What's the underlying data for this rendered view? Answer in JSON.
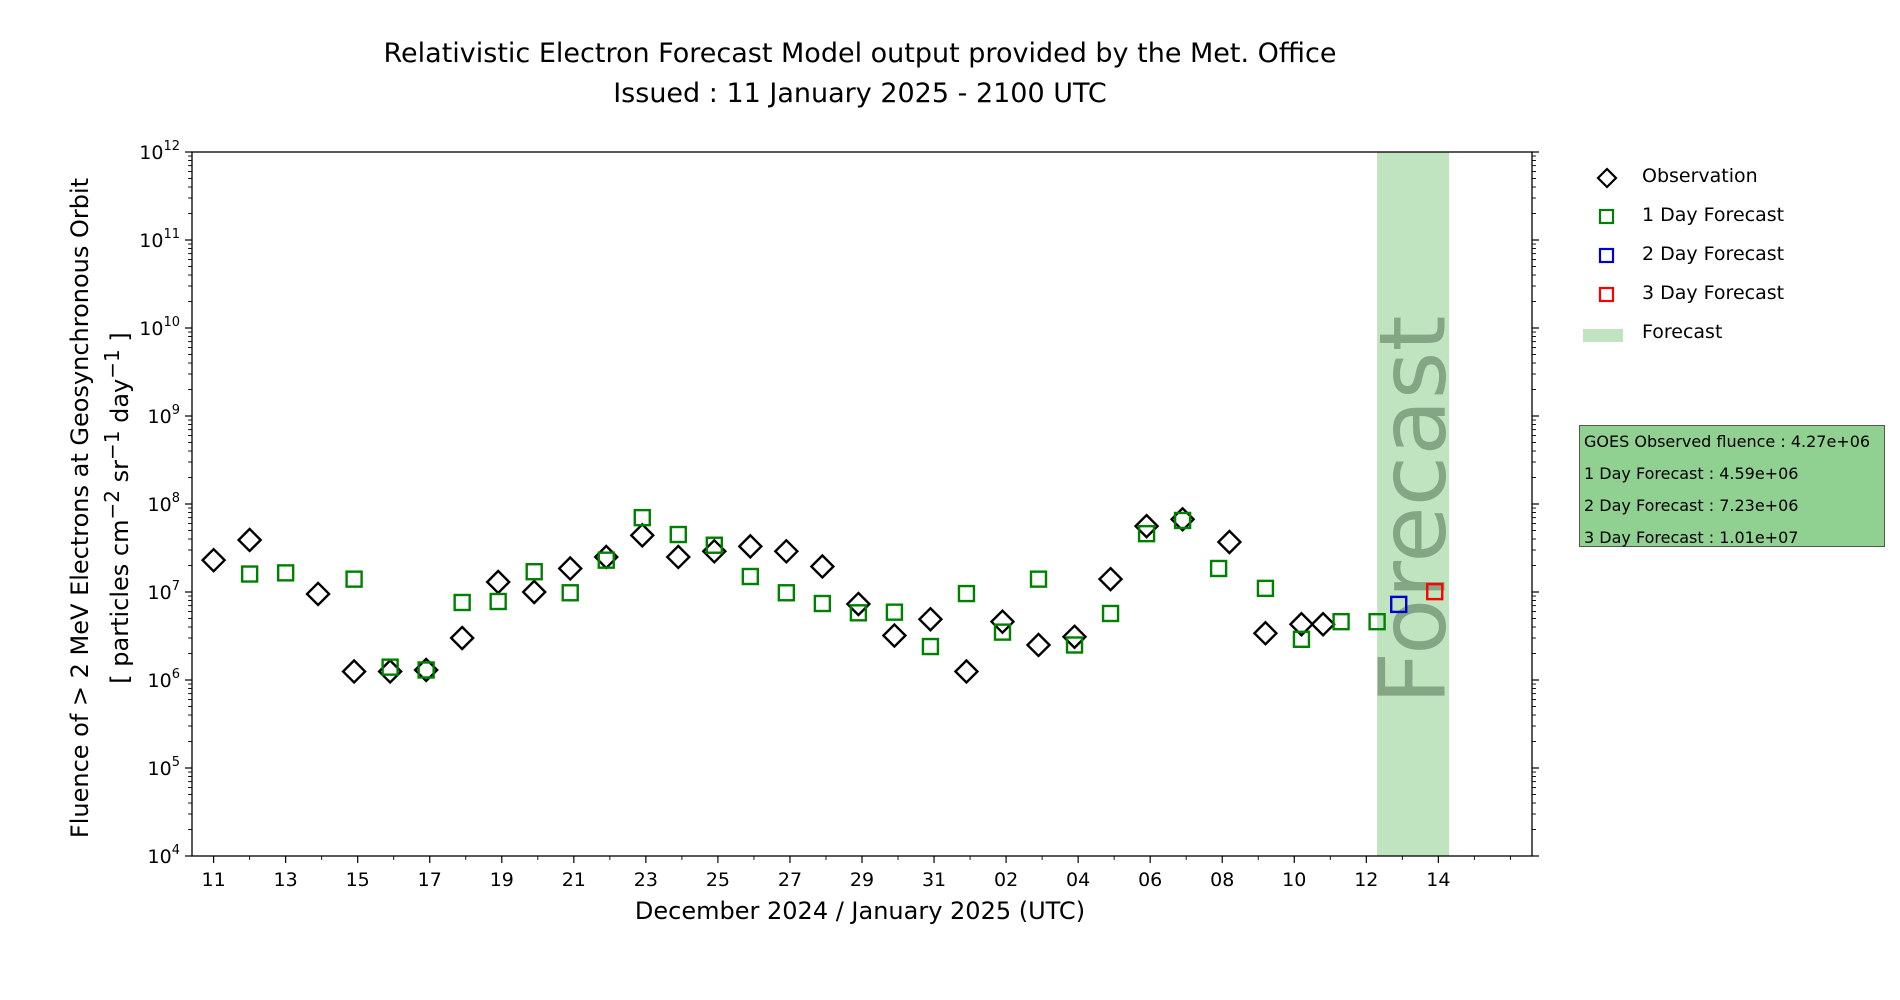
{
  "chart_data": {
    "type": "scatter",
    "title": "Relativistic Electron Forecast Model output provided by the Met. Office",
    "subtitle": "Issued : 11 January 2025 - 2100 UTC",
    "xlabel": "December 2024 / January 2025 (UTC)",
    "ylabel_line1": "Fluence of > 2 MeV Electrons at Geosynchronous Orbit",
    "ylabel_line2_parts": [
      "[ particles cm",
      "−2",
      " sr",
      "−1",
      " day",
      "−1",
      " ]"
    ],
    "yscale": "log",
    "ylim_exponents": [
      4,
      12
    ],
    "ytick_exponents": [
      4,
      5,
      6,
      7,
      8,
      9,
      10,
      11,
      12
    ],
    "ytick_base": "10",
    "xlim_days": [
      -0.6,
      36.6
    ],
    "xtick_days": [
      0,
      2,
      4,
      6,
      8,
      10,
      12,
      14,
      16,
      18,
      20,
      22,
      24,
      26,
      28,
      30,
      32,
      34
    ],
    "xtick_labels": [
      "11",
      "13",
      "15",
      "17",
      "19",
      "21",
      "23",
      "25",
      "27",
      "29",
      "31",
      "02",
      "04",
      "06",
      "08",
      "10",
      "12",
      "14"
    ],
    "forecast_band": {
      "label": "Forecast",
      "x_start": 32.3,
      "x_end": 34.3
    },
    "series": [
      {
        "name": "Observation",
        "marker": "diamond",
        "color": "#000000",
        "x": [
          0,
          1,
          2.9,
          3.9,
          4.9,
          5.9,
          6.9,
          7.9,
          8.9,
          9.9,
          10.9,
          11.9,
          12.9,
          13.9,
          14.9,
          15.9,
          16.9,
          17.9,
          18.9,
          19.9,
          20.9,
          21.9,
          22.9,
          23.9,
          24.9,
          25.9,
          26.9,
          28.2,
          29.2,
          30.2,
          30.8
        ],
        "y": [
          23000000.0,
          39000000.0,
          9500000.0,
          1250000.0,
          1250000.0,
          1300000.0,
          3000000.0,
          13000000.0,
          10000000.0,
          18500000.0,
          25000000.0,
          44000000.0,
          25000000.0,
          29000000.0,
          33000000.0,
          29000000.0,
          19500000.0,
          7300000.0,
          3200000.0,
          4900000.0,
          1250000.0,
          4600000.0,
          2500000.0,
          3100000.0,
          14000000.0,
          56000000.0,
          67000000.0,
          37000000.0,
          3400000.0,
          4300000.0,
          4300000.0
        ]
      },
      {
        "name": "1 Day Forecast",
        "marker": "square",
        "color": "#008000",
        "x": [
          1,
          2,
          3.9,
          4.9,
          5.9,
          6.9,
          7.9,
          8.9,
          9.9,
          10.9,
          11.9,
          12.9,
          13.9,
          14.9,
          15.9,
          16.9,
          17.9,
          18.9,
          19.9,
          20.9,
          21.9,
          22.9,
          23.9,
          24.9,
          25.9,
          26.9,
          27.9,
          29.2,
          30.2,
          31.3,
          32.3
        ],
        "y": [
          16000000.0,
          16500000.0,
          14000000.0,
          1400000.0,
          1300000.0,
          7600000.0,
          7800000.0,
          17000000.0,
          9800000.0,
          23000000.0,
          70000000.0,
          45000000.0,
          34000000.0,
          15000000.0,
          9800000.0,
          7400000.0,
          5800000.0,
          5900000.0,
          2400000.0,
          9600000.0,
          3500000.0,
          14000000.0,
          2500000.0,
          5700000.0,
          46000000.0,
          65000000.0,
          18500000.0,
          11000000.0,
          2900000.0,
          4600000.0,
          4600000.0
        ]
      },
      {
        "name": "2 Day Forecast",
        "marker": "square",
        "color": "#0000cc",
        "x": [
          32.9
        ],
        "y": [
          7230000.0
        ]
      },
      {
        "name": "3 Day Forecast",
        "marker": "square",
        "color": "#ff0000",
        "x": [
          33.9
        ],
        "y": [
          10100000.0
        ]
      }
    ],
    "legend": {
      "placement": "upper-right-outside",
      "items": [
        {
          "label": "Observation",
          "symbol": "diamond",
          "color": "#000000"
        },
        {
          "label": "1 Day Forecast",
          "symbol": "square",
          "color": "#008000"
        },
        {
          "label": "2 Day Forecast",
          "symbol": "square",
          "color": "#0000cc"
        },
        {
          "label": "3 Day Forecast",
          "symbol": "square",
          "color": "#ff0000"
        },
        {
          "label": "Forecast",
          "symbol": "band",
          "color": "#c0e4c0"
        }
      ]
    },
    "info_box": {
      "color": "#90d090",
      "lines": [
        "GOES Observed fluence : 4.27e+06",
        "1 Day Forecast : 4.59e+06",
        "2 Day Forecast : 7.23e+06",
        "3 Day Forecast : 1.01e+07"
      ]
    }
  }
}
